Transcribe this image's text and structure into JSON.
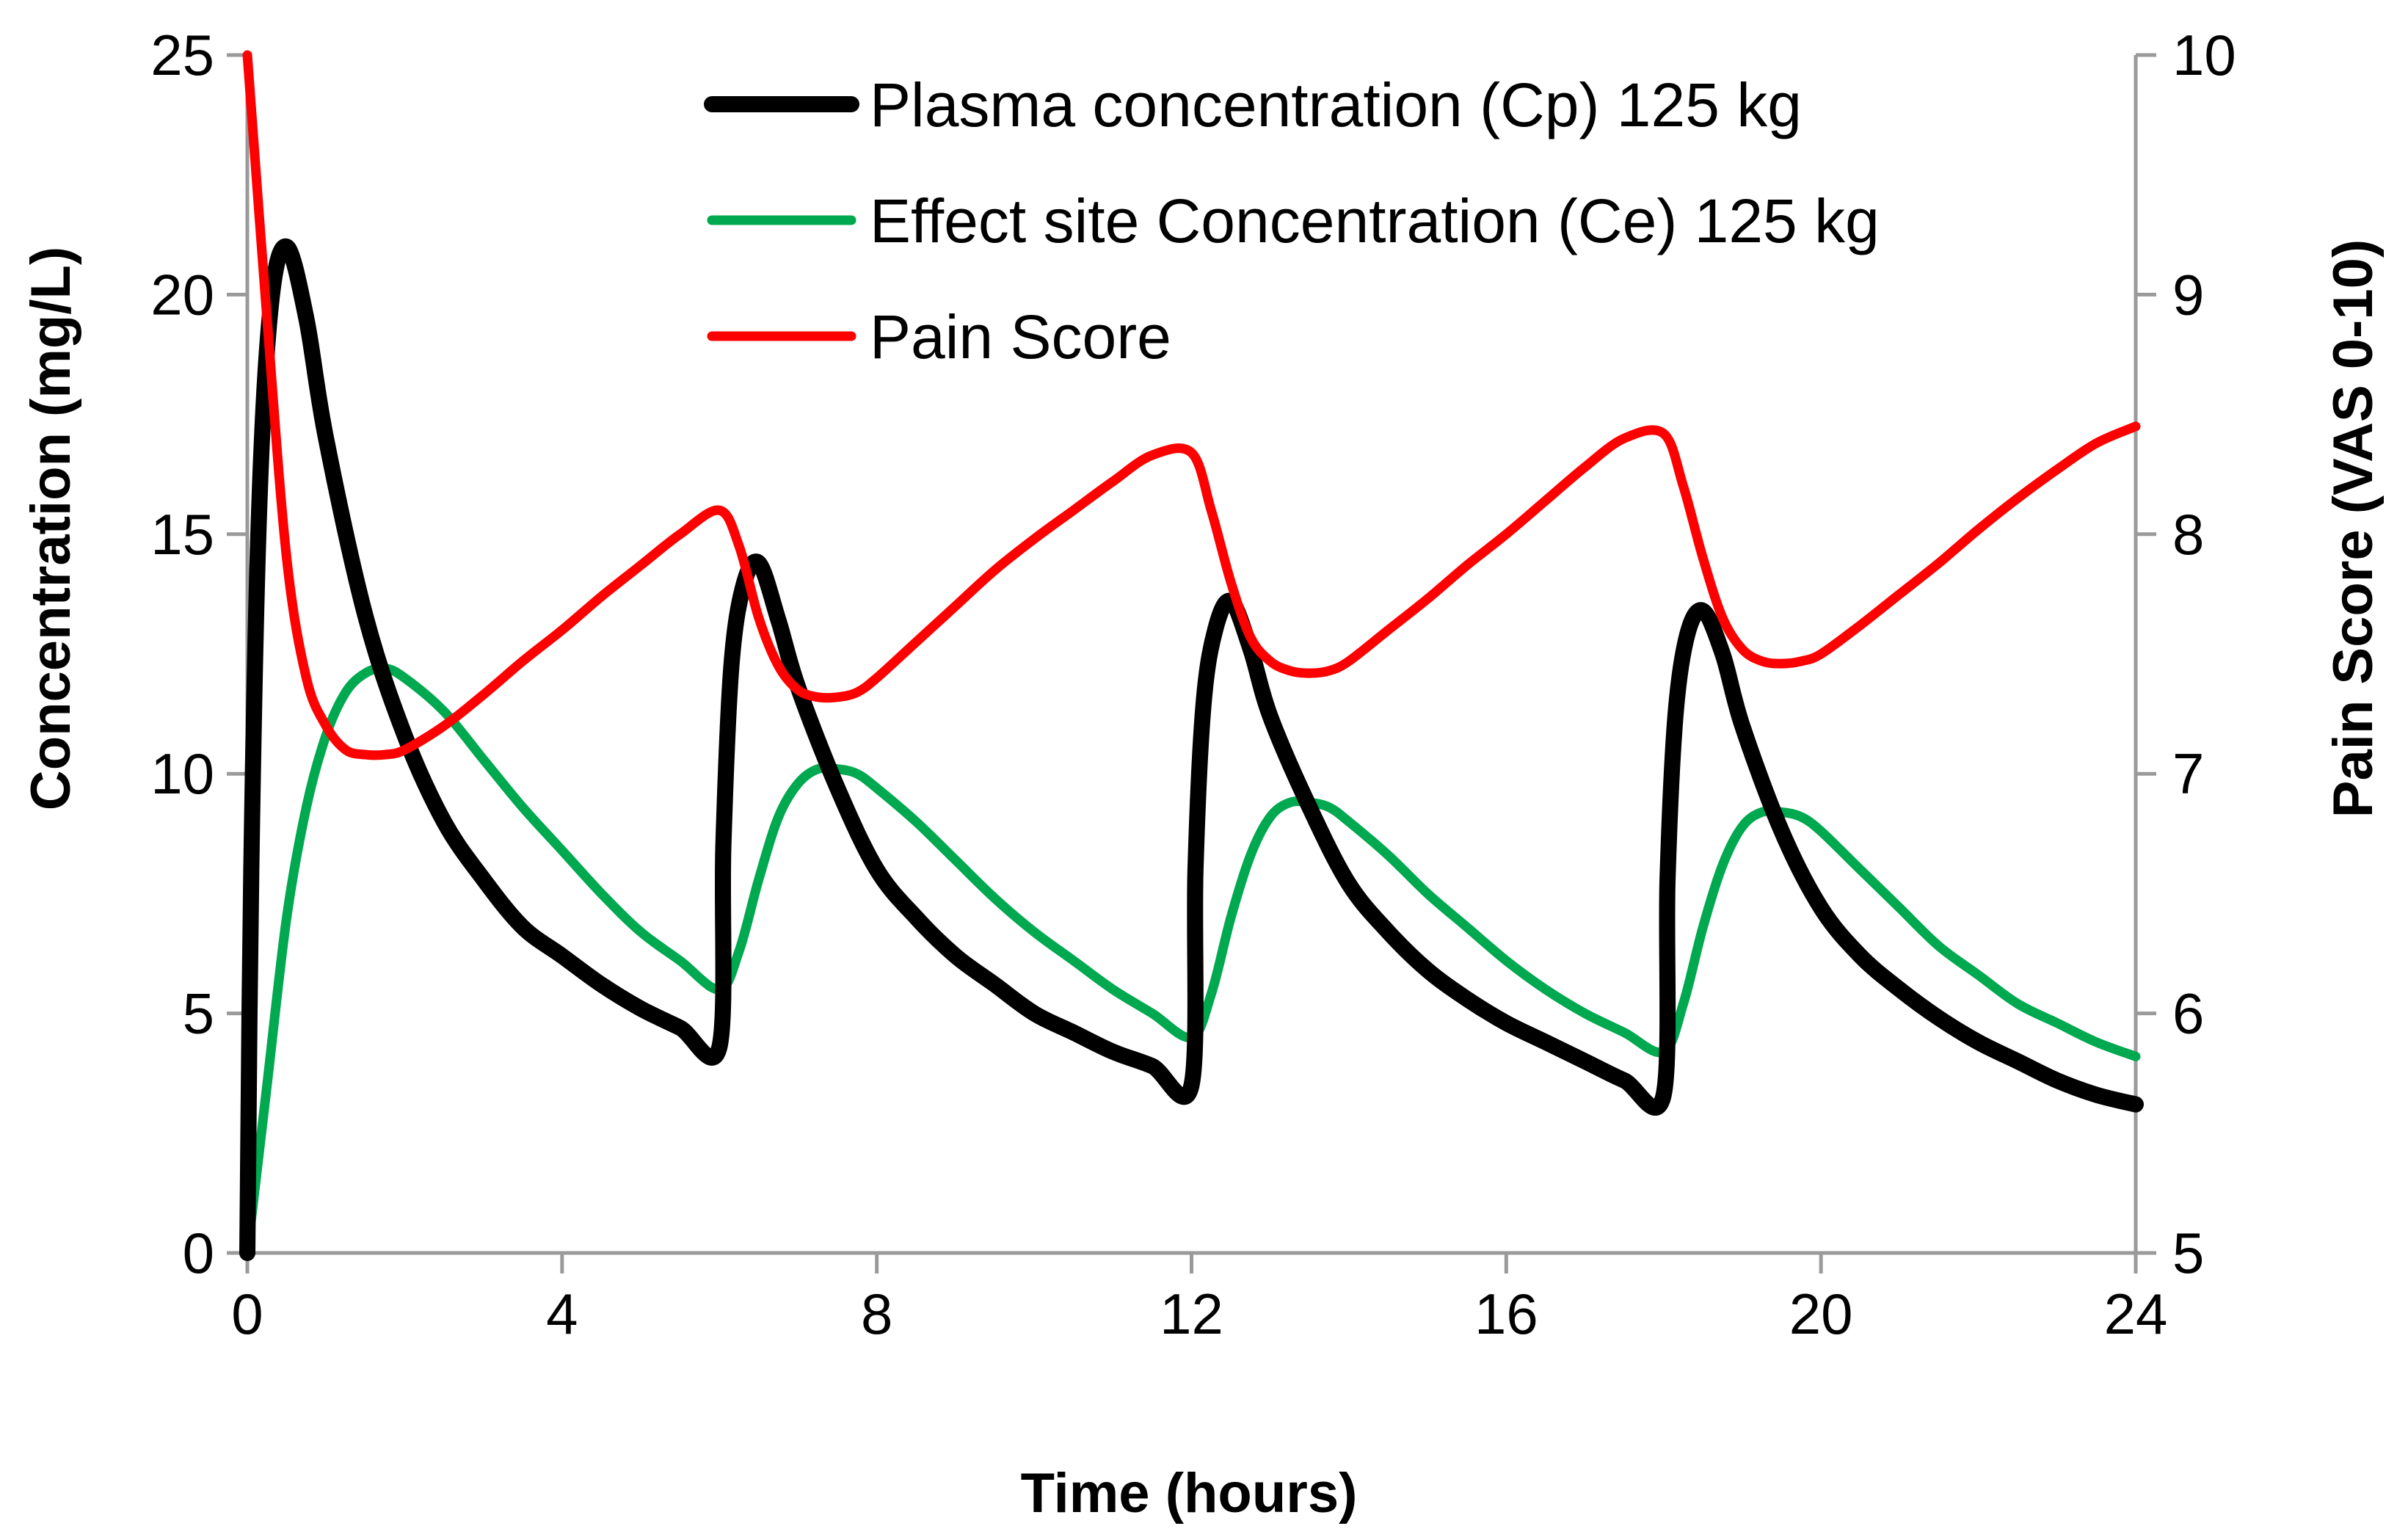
{
  "chart_data": {
    "type": "line",
    "title": "",
    "xlabel": "Time (hours)",
    "ylabel": "Concentration (mg/L)",
    "y2label": "Pain Score (VAS 0-10)",
    "xlim": [
      0,
      24
    ],
    "ylim": [
      0,
      25
    ],
    "y2lim": [
      5,
      10
    ],
    "xticks": [
      0,
      4,
      8,
      12,
      16,
      20,
      24
    ],
    "yticks": [
      0,
      5,
      10,
      15,
      20,
      25
    ],
    "y2ticks": [
      5,
      6,
      7,
      8,
      9,
      10
    ],
    "grid": false,
    "legend_position": "top-center",
    "series": [
      {
        "name": "Plasma concentration (Cp) 125 kg",
        "axis": "left",
        "color": "#000000",
        "x": [
          0,
          0.05,
          0.15,
          0.3,
          0.5,
          0.75,
          1,
          1.5,
          2,
          2.5,
          3,
          3.5,
          4,
          4.5,
          5,
          5.5,
          6,
          6.05,
          6.15,
          6.3,
          6.5,
          6.75,
          7,
          7.5,
          8,
          8.5,
          9,
          9.5,
          10,
          10.5,
          11,
          11.5,
          12,
          12.05,
          12.15,
          12.3,
          12.5,
          12.75,
          13,
          13.5,
          14,
          14.5,
          15,
          15.5,
          16,
          16.5,
          17,
          17.5,
          18,
          18.05,
          18.15,
          18.3,
          18.5,
          18.75,
          19,
          19.5,
          20,
          20.5,
          21,
          21.5,
          22,
          22.5,
          23,
          23.5,
          24
        ],
        "values": [
          0,
          8,
          15.5,
          19.8,
          21,
          19.5,
          17,
          13.3,
          10.8,
          9,
          7.8,
          6.8,
          6.2,
          5.6,
          5.1,
          4.7,
          4.3,
          8.5,
          12.2,
          13.9,
          14.4,
          13.2,
          11.8,
          9.7,
          8,
          7,
          6.2,
          5.6,
          5,
          4.6,
          4.2,
          3.9,
          3.5,
          8,
          11.4,
          13,
          13.6,
          12.6,
          11.2,
          9.3,
          7.7,
          6.7,
          5.9,
          5.3,
          4.8,
          4.4,
          4,
          3.6,
          3.3,
          7.8,
          11.2,
          12.9,
          13.4,
          12.5,
          11,
          8.8,
          7.2,
          6.2,
          5.5,
          4.9,
          4.4,
          4,
          3.6,
          3.3,
          3.1
        ]
      },
      {
        "name": "Effect site Concentration (Ce) 125 kg",
        "axis": "left",
        "color": "#00a84f",
        "x": [
          0,
          0.25,
          0.5,
          0.75,
          1,
          1.25,
          1.5,
          1.75,
          2,
          2.5,
          3,
          3.5,
          4,
          4.5,
          5,
          5.5,
          6,
          6.25,
          6.5,
          6.75,
          7,
          7.25,
          7.5,
          7.75,
          8,
          8.5,
          9,
          9.5,
          10,
          10.5,
          11,
          11.5,
          12,
          12.25,
          12.5,
          12.75,
          13,
          13.25,
          13.5,
          13.75,
          14,
          14.5,
          15,
          15.5,
          16,
          16.5,
          17,
          17.5,
          18,
          18.25,
          18.5,
          18.75,
          19,
          19.25,
          19.5,
          19.75,
          20,
          20.5,
          21,
          21.5,
          22,
          22.5,
          23,
          23.5,
          24
        ],
        "values": [
          0,
          3.5,
          7,
          9.3,
          10.8,
          11.7,
          12.1,
          12.2,
          12,
          11.3,
          10.3,
          9.3,
          8.4,
          7.5,
          6.7,
          6.1,
          5.5,
          6.3,
          7.8,
          9.1,
          9.8,
          10.1,
          10.1,
          10,
          9.7,
          9,
          8.2,
          7.4,
          6.7,
          6.1,
          5.5,
          5,
          4.5,
          5.4,
          7,
          8.3,
          9.1,
          9.4,
          9.4,
          9.3,
          9,
          8.3,
          7.5,
          6.8,
          6.1,
          5.5,
          5,
          4.6,
          4.2,
          5.2,
          6.8,
          8.1,
          8.9,
          9.2,
          9.2,
          9.1,
          8.8,
          8,
          7.2,
          6.4,
          5.8,
          5.2,
          4.8,
          4.4,
          4.1
        ]
      },
      {
        "name": "Pain Score",
        "axis": "right",
        "color": "#ff0000",
        "x": [
          0,
          0.25,
          0.5,
          0.75,
          1,
          1.25,
          1.5,
          1.75,
          2,
          2.5,
          3,
          3.5,
          4,
          4.5,
          5,
          5.5,
          6,
          6.25,
          6.5,
          6.75,
          7,
          7.25,
          7.5,
          7.75,
          8,
          8.5,
          9,
          9.5,
          10,
          10.5,
          11,
          11.5,
          12,
          12.25,
          12.5,
          12.75,
          13,
          13.25,
          13.5,
          13.75,
          14,
          14.5,
          15,
          15.5,
          16,
          16.5,
          17,
          17.5,
          18,
          18.25,
          18.5,
          18.75,
          19,
          19.25,
          19.5,
          19.75,
          20,
          20.5,
          21,
          21.5,
          22,
          22.5,
          23,
          23.5,
          24
        ],
        "values": [
          10,
          8.9,
          7.9,
          7.4,
          7.2,
          7.1,
          7.08,
          7.08,
          7.1,
          7.2,
          7.33,
          7.47,
          7.6,
          7.74,
          7.87,
          8,
          8.1,
          7.95,
          7.65,
          7.45,
          7.35,
          7.32,
          7.32,
          7.34,
          7.4,
          7.55,
          7.7,
          7.85,
          7.98,
          8.1,
          8.22,
          8.33,
          8.34,
          8.1,
          7.8,
          7.57,
          7.47,
          7.43,
          7.42,
          7.43,
          7.47,
          7.6,
          7.73,
          7.87,
          8,
          8.14,
          8.28,
          8.4,
          8.42,
          8.2,
          7.9,
          7.65,
          7.52,
          7.47,
          7.46,
          7.47,
          7.5,
          7.62,
          7.75,
          7.88,
          8.02,
          8.15,
          8.27,
          8.38,
          8.45
        ]
      }
    ]
  }
}
